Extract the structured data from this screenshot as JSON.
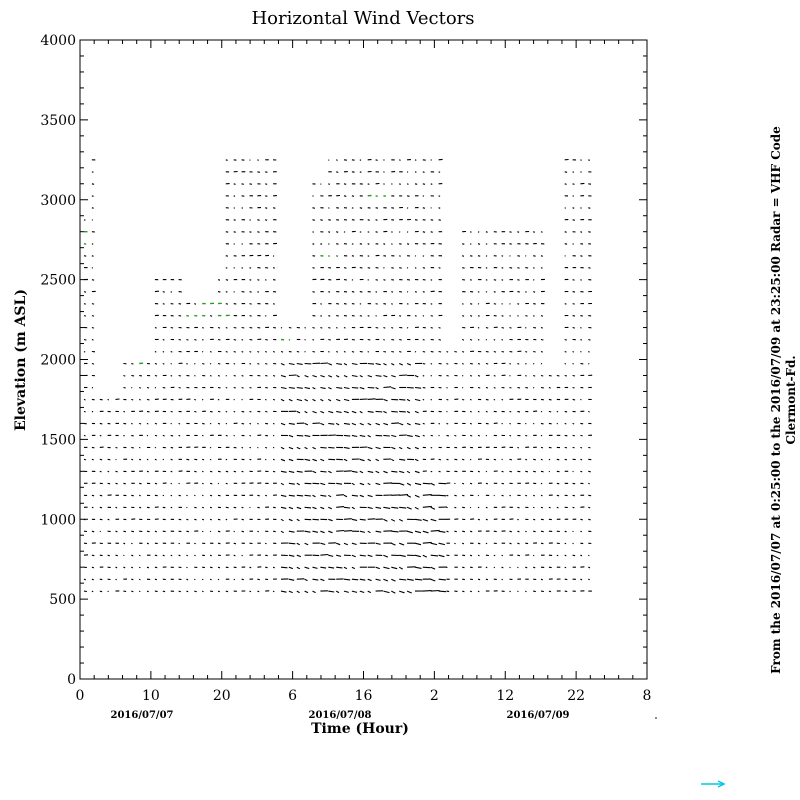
{
  "chart_data": {
    "type": "vector_field",
    "title": "Horizontal Wind Vectors",
    "xlabel": "Time (Hour)",
    "ylabel": "Elevation (m ASL)",
    "ylim": [
      0,
      4000
    ],
    "y_ticks": [
      "0",
      "500",
      "1000",
      "1500",
      "2000",
      "2500",
      "3000",
      "3500",
      "4000"
    ],
    "x_ticks": [
      "0",
      "10",
      "20",
      "6",
      "16",
      "2",
      "12",
      "22",
      "8"
    ],
    "date_labels": [
      "2016/07/07",
      "2016/07/08",
      "2016/07/09"
    ],
    "side_text": [
      "From the 2016/07/07 at  0:25:00 to the 2016/07/09 at 23:25:00 Radar = VHF Code",
      "Clermont-Fd."
    ],
    "colors": {
      "vectors": "#000000",
      "highlight": "#2a9a2a",
      "legend_arrow": "#00c8e6"
    },
    "grid": false
  }
}
